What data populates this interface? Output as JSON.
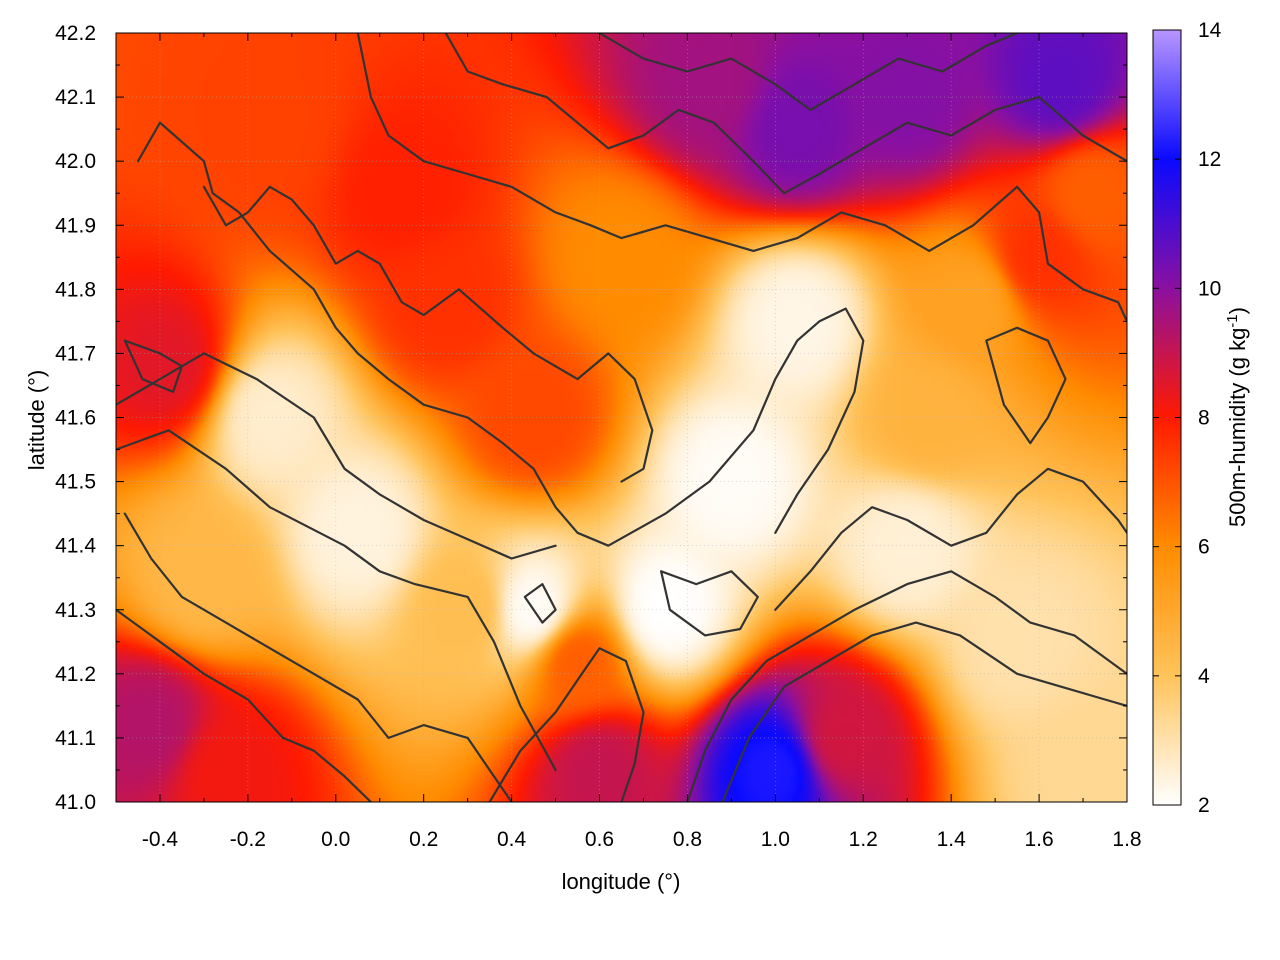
{
  "chart_data": {
    "type": "heatmap",
    "xlabel": "longitude (°)",
    "ylabel": "latitude (°)",
    "xlim": [
      -0.5,
      1.8
    ],
    "ylim": [
      41.0,
      42.2
    ],
    "x_ticks": [
      "-0.4",
      "-0.2",
      "0.0",
      "0.2",
      "0.4",
      "0.6",
      "0.8",
      "1.0",
      "1.2",
      "1.4",
      "1.6",
      "1.8"
    ],
    "x_tick_values": [
      -0.4,
      -0.2,
      0.0,
      0.2,
      0.4,
      0.6,
      0.8,
      1.0,
      1.2,
      1.4,
      1.6,
      1.8
    ],
    "y_ticks": [
      "41.0",
      "41.1",
      "41.2",
      "41.3",
      "41.4",
      "41.5",
      "41.6",
      "41.7",
      "41.8",
      "41.9",
      "42.0",
      "42.1",
      "42.2"
    ],
    "y_tick_values": [
      41.0,
      41.1,
      41.2,
      41.3,
      41.4,
      41.5,
      41.6,
      41.7,
      41.8,
      41.9,
      42.0,
      42.1,
      42.2
    ],
    "grid": true,
    "colorbar": {
      "label_main": "500m-humidity (g kg",
      "label_sup": "-1",
      "label_end": ")",
      "range": [
        2,
        14
      ],
      "ticks": [
        "2",
        "4",
        "6",
        "8",
        "10",
        "12",
        "14"
      ],
      "tick_values": [
        2,
        4,
        6,
        8,
        10,
        12,
        14
      ],
      "palette": [
        {
          "value": 2,
          "color": "#ffffff"
        },
        {
          "value": 4,
          "color": "#ffc35a"
        },
        {
          "value": 6,
          "color": "#ff8c00"
        },
        {
          "value": 8,
          "color": "#ff1a00"
        },
        {
          "value": 10,
          "color": "#8b10a0"
        },
        {
          "value": 12,
          "color": "#0a0aff"
        },
        {
          "value": 14,
          "color": "#b896ff"
        }
      ]
    },
    "field_features": [
      {
        "lon": -0.15,
        "lat": 41.6,
        "value": 2.6
      },
      {
        "lon": 0.05,
        "lat": 41.42,
        "value": 2.4
      },
      {
        "lon": 0.45,
        "lat": 41.3,
        "value": 2.1
      },
      {
        "lon": 0.75,
        "lat": 41.3,
        "value": 2.0
      },
      {
        "lon": 0.9,
        "lat": 41.5,
        "value": 2.1
      },
      {
        "lon": 1.05,
        "lat": 41.75,
        "value": 2.3
      },
      {
        "lon": 1.3,
        "lat": 41.4,
        "value": 2.5
      },
      {
        "lon": 1.55,
        "lat": 41.25,
        "value": 3.0
      },
      {
        "lon": 1.7,
        "lat": 41.05,
        "value": 3.3
      },
      {
        "lon": 0.25,
        "lat": 41.78,
        "value": 7.6
      },
      {
        "lon": 0.15,
        "lat": 41.95,
        "value": 7.9
      },
      {
        "lon": -0.15,
        "lat": 42.05,
        "value": 7.3
      },
      {
        "lon": 0.45,
        "lat": 41.6,
        "value": 7.2
      },
      {
        "lon": 0.85,
        "lat": 42.12,
        "value": 9.6
      },
      {
        "lon": 1.05,
        "lat": 42.05,
        "value": 10.3
      },
      {
        "lon": 1.3,
        "lat": 42.1,
        "value": 10.1
      },
      {
        "lon": 1.65,
        "lat": 42.12,
        "value": 10.7
      },
      {
        "lon": 1.6,
        "lat": 41.85,
        "value": 7.6
      },
      {
        "lon": 1.72,
        "lat": 41.95,
        "value": 6.8
      },
      {
        "lon": -0.38,
        "lat": 41.68,
        "value": 8.5
      },
      {
        "lon": -0.42,
        "lat": 41.12,
        "value": 9.3
      },
      {
        "lon": -0.25,
        "lat": 41.05,
        "value": 8.2
      },
      {
        "lon": 1.0,
        "lat": 41.05,
        "value": 12.2
      },
      {
        "lon": 1.15,
        "lat": 41.1,
        "value": 8.8
      },
      {
        "lon": 0.6,
        "lat": 41.05,
        "value": 9.0
      },
      {
        "lon": 0.55,
        "lat": 41.22,
        "value": 6.8
      },
      {
        "lon": 1.35,
        "lat": 41.6,
        "value": 4.6
      },
      {
        "lon": 0.3,
        "lat": 41.3,
        "value": 4.2
      },
      {
        "lon": -0.3,
        "lat": 41.35,
        "value": 4.4
      },
      {
        "lon": 1.45,
        "lat": 41.78,
        "value": 5.2
      },
      {
        "lon": 0.65,
        "lat": 41.85,
        "value": 6.0
      }
    ],
    "contour_lines": [
      [
        [
          -0.5,
          41.55
        ],
        [
          -0.38,
          41.58
        ],
        [
          -0.25,
          41.52
        ],
        [
          -0.15,
          41.46
        ],
        [
          0.02,
          41.4
        ],
        [
          0.1,
          41.36
        ],
        [
          0.18,
          41.34
        ],
        [
          0.3,
          41.32
        ],
        [
          0.36,
          41.25
        ],
        [
          0.42,
          41.15
        ],
        [
          0.5,
          41.05
        ]
      ],
      [
        [
          -0.5,
          41.62
        ],
        [
          -0.4,
          41.66
        ],
        [
          -0.3,
          41.7
        ],
        [
          -0.18,
          41.66
        ],
        [
          -0.05,
          41.6
        ],
        [
          0.02,
          41.52
        ],
        [
          0.1,
          41.48
        ],
        [
          0.2,
          41.44
        ],
        [
          0.3,
          41.41
        ],
        [
          0.4,
          41.38
        ],
        [
          0.5,
          41.4
        ]
      ],
      [
        [
          -0.45,
          42.0
        ],
        [
          -0.4,
          42.06
        ],
        [
          -0.3,
          42.0
        ],
        [
          -0.28,
          41.95
        ],
        [
          -0.22,
          41.92
        ],
        [
          -0.15,
          41.86
        ],
        [
          -0.05,
          41.8
        ],
        [
          0.0,
          41.74
        ],
        [
          0.05,
          41.7
        ],
        [
          0.12,
          41.66
        ],
        [
          0.2,
          41.62
        ],
        [
          0.3,
          41.6
        ],
        [
          0.38,
          41.56
        ],
        [
          0.45,
          41.52
        ],
        [
          0.5,
          41.46
        ],
        [
          0.55,
          41.42
        ],
        [
          0.62,
          41.4
        ],
        [
          0.75,
          41.45
        ],
        [
          0.85,
          41.5
        ],
        [
          0.95,
          41.58
        ],
        [
          1.0,
          41.66
        ],
        [
          1.05,
          41.72
        ],
        [
          1.1,
          41.75
        ],
        [
          1.16,
          41.77
        ],
        [
          1.2,
          41.72
        ],
        [
          1.18,
          41.64
        ],
        [
          1.12,
          41.55
        ],
        [
          1.05,
          41.48
        ],
        [
          1.0,
          41.42
        ]
      ],
      [
        [
          -0.3,
          41.96
        ],
        [
          -0.25,
          41.9
        ],
        [
          -0.2,
          41.92
        ],
        [
          -0.15,
          41.96
        ],
        [
          -0.1,
          41.94
        ],
        [
          -0.05,
          41.9
        ],
        [
          0.0,
          41.84
        ],
        [
          0.05,
          41.86
        ],
        [
          0.1,
          41.84
        ],
        [
          0.15,
          41.78
        ],
        [
          0.2,
          41.76
        ],
        [
          0.28,
          41.8
        ],
        [
          0.38,
          41.74
        ],
        [
          0.45,
          41.7
        ],
        [
          0.55,
          41.66
        ],
        [
          0.62,
          41.7
        ],
        [
          0.68,
          41.66
        ],
        [
          0.72,
          41.58
        ],
        [
          0.7,
          41.52
        ],
        [
          0.65,
          41.5
        ]
      ],
      [
        [
          0.05,
          42.2
        ],
        [
          0.08,
          42.1
        ],
        [
          0.12,
          42.04
        ],
        [
          0.2,
          42.0
        ],
        [
          0.3,
          41.98
        ],
        [
          0.4,
          41.96
        ],
        [
          0.5,
          41.92
        ],
        [
          0.58,
          41.9
        ],
        [
          0.65,
          41.88
        ],
        [
          0.75,
          41.9
        ],
        [
          0.85,
          41.88
        ],
        [
          0.95,
          41.86
        ],
        [
          1.05,
          41.88
        ],
        [
          1.15,
          41.92
        ],
        [
          1.25,
          41.9
        ],
        [
          1.35,
          41.86
        ],
        [
          1.45,
          41.9
        ],
        [
          1.55,
          41.96
        ],
        [
          1.6,
          41.92
        ],
        [
          1.62,
          41.84
        ],
        [
          1.7,
          41.8
        ],
        [
          1.78,
          41.78
        ],
        [
          1.8,
          41.75
        ]
      ],
      [
        [
          0.25,
          42.2
        ],
        [
          0.3,
          42.14
        ],
        [
          0.38,
          42.12
        ],
        [
          0.48,
          42.1
        ],
        [
          0.55,
          42.06
        ],
        [
          0.62,
          42.02
        ],
        [
          0.7,
          42.04
        ],
        [
          0.78,
          42.08
        ],
        [
          0.86,
          42.06
        ],
        [
          0.95,
          42.0
        ],
        [
          1.02,
          41.95
        ],
        [
          1.1,
          41.98
        ],
        [
          1.2,
          42.02
        ],
        [
          1.3,
          42.06
        ],
        [
          1.4,
          42.04
        ],
        [
          1.5,
          42.08
        ],
        [
          1.6,
          42.1
        ],
        [
          1.7,
          42.04
        ],
        [
          1.8,
          42.0
        ]
      ],
      [
        [
          0.6,
          42.2
        ],
        [
          0.7,
          42.16
        ],
        [
          0.8,
          42.14
        ],
        [
          0.9,
          42.16
        ],
        [
          1.0,
          42.12
        ],
        [
          1.08,
          42.08
        ],
        [
          1.18,
          42.12
        ],
        [
          1.28,
          42.16
        ],
        [
          1.38,
          42.14
        ],
        [
          1.48,
          42.18
        ],
        [
          1.55,
          42.2
        ]
      ],
      [
        [
          -0.48,
          41.45
        ],
        [
          -0.42,
          41.38
        ],
        [
          -0.35,
          41.32
        ],
        [
          -0.25,
          41.28
        ],
        [
          -0.15,
          41.24
        ],
        [
          -0.05,
          41.2
        ],
        [
          0.05,
          41.16
        ],
        [
          0.12,
          41.1
        ],
        [
          0.2,
          41.12
        ],
        [
          0.3,
          41.1
        ],
        [
          0.35,
          41.05
        ],
        [
          0.4,
          41.0
        ]
      ],
      [
        [
          -0.5,
          41.3
        ],
        [
          -0.4,
          41.25
        ],
        [
          -0.3,
          41.2
        ],
        [
          -0.2,
          41.16
        ],
        [
          -0.12,
          41.1
        ],
        [
          -0.05,
          41.08
        ],
        [
          0.02,
          41.04
        ],
        [
          0.08,
          41.0
        ]
      ],
      [
        [
          0.35,
          41.0
        ],
        [
          0.42,
          41.08
        ],
        [
          0.5,
          41.14
        ],
        [
          0.56,
          41.2
        ],
        [
          0.6,
          41.24
        ],
        [
          0.66,
          41.22
        ],
        [
          0.7,
          41.14
        ],
        [
          0.68,
          41.06
        ],
        [
          0.65,
          41.0
        ]
      ],
      [
        [
          0.8,
          41.0
        ],
        [
          0.84,
          41.08
        ],
        [
          0.9,
          41.16
        ],
        [
          0.98,
          41.22
        ],
        [
          1.08,
          41.26
        ],
        [
          1.18,
          41.3
        ],
        [
          1.3,
          41.34
        ],
        [
          1.4,
          41.36
        ],
        [
          1.5,
          41.32
        ],
        [
          1.58,
          41.28
        ],
        [
          1.68,
          41.26
        ],
        [
          1.76,
          41.22
        ],
        [
          1.8,
          41.2
        ]
      ],
      [
        [
          0.88,
          41.0
        ],
        [
          0.94,
          41.1
        ],
        [
          1.02,
          41.18
        ],
        [
          1.12,
          41.22
        ],
        [
          1.22,
          41.26
        ],
        [
          1.32,
          41.28
        ],
        [
          1.42,
          41.26
        ],
        [
          1.55,
          41.2
        ],
        [
          1.65,
          41.18
        ],
        [
          1.75,
          41.16
        ],
        [
          1.8,
          41.15
        ]
      ],
      [
        [
          1.0,
          41.3
        ],
        [
          1.08,
          41.36
        ],
        [
          1.15,
          41.42
        ],
        [
          1.22,
          41.46
        ],
        [
          1.3,
          41.44
        ],
        [
          1.4,
          41.4
        ],
        [
          1.48,
          41.42
        ],
        [
          1.55,
          41.48
        ],
        [
          1.62,
          41.52
        ],
        [
          1.7,
          41.5
        ],
        [
          1.78,
          41.44
        ],
        [
          1.8,
          41.42
        ]
      ],
      [
        [
          1.48,
          41.72
        ],
        [
          1.52,
          41.62
        ],
        [
          1.58,
          41.56
        ],
        [
          1.62,
          41.6
        ],
        [
          1.66,
          41.66
        ],
        [
          1.62,
          41.72
        ],
        [
          1.55,
          41.74
        ],
        [
          1.48,
          41.72
        ]
      ],
      [
        [
          0.74,
          41.36
        ],
        [
          0.82,
          41.34
        ],
        [
          0.9,
          41.36
        ],
        [
          0.96,
          41.32
        ],
        [
          0.92,
          41.27
        ],
        [
          0.84,
          41.26
        ],
        [
          0.76,
          41.3
        ],
        [
          0.74,
          41.36
        ]
      ],
      [
        [
          -0.48,
          41.72
        ],
        [
          -0.4,
          41.7
        ],
        [
          -0.35,
          41.68
        ],
        [
          -0.37,
          41.64
        ],
        [
          -0.44,
          41.66
        ],
        [
          -0.48,
          41.72
        ]
      ],
      [
        [
          0.43,
          41.32
        ],
        [
          0.47,
          41.28
        ],
        [
          0.5,
          41.3
        ],
        [
          0.47,
          41.34
        ],
        [
          0.43,
          41.32
        ]
      ]
    ]
  }
}
